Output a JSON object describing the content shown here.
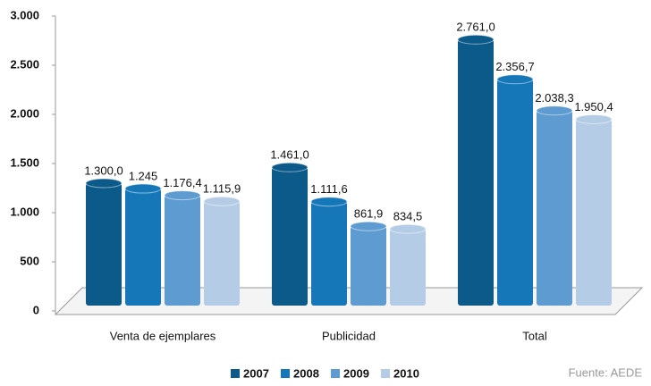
{
  "chart_data": {
    "type": "bar",
    "categories": [
      "Venta de ejemplares",
      "Publicidad",
      "Total"
    ],
    "series": [
      {
        "name": "2007",
        "color": "#0b5a8a",
        "values": [
          1300.0,
          1461.0,
          2761.0
        ],
        "value_labels": [
          "1.300,0",
          "1.461,0",
          "2.761,0"
        ]
      },
      {
        "name": "2008",
        "color": "#1677b8",
        "values": [
          1245,
          1111.6,
          2356.7
        ],
        "value_labels": [
          "1.245",
          "1.111,6",
          "2.356,7"
        ]
      },
      {
        "name": "2009",
        "color": "#5d9bd0",
        "values": [
          1176.4,
          861.9,
          2038.3
        ],
        "value_labels": [
          "1.176,4",
          "861,9",
          "2.038,3"
        ]
      },
      {
        "name": "2010",
        "color": "#b5cce6",
        "values": [
          1115.9,
          834.5,
          1950.4
        ],
        "value_labels": [
          "1.115,9",
          "834,5",
          "1.950,4"
        ]
      }
    ],
    "ylim": [
      0,
      3000
    ],
    "yticks": [
      0,
      500,
      {
        "value": 1000,
        "label": "1.000"
      },
      {
        "value": 1500,
        "label": "1.500"
      },
      {
        "value": 2000,
        "label": "2.000"
      },
      {
        "value": 2500,
        "label": "2.500"
      },
      {
        "value": 3000,
        "label": "3.000"
      }
    ],
    "source": "Fuente: AEDE"
  }
}
